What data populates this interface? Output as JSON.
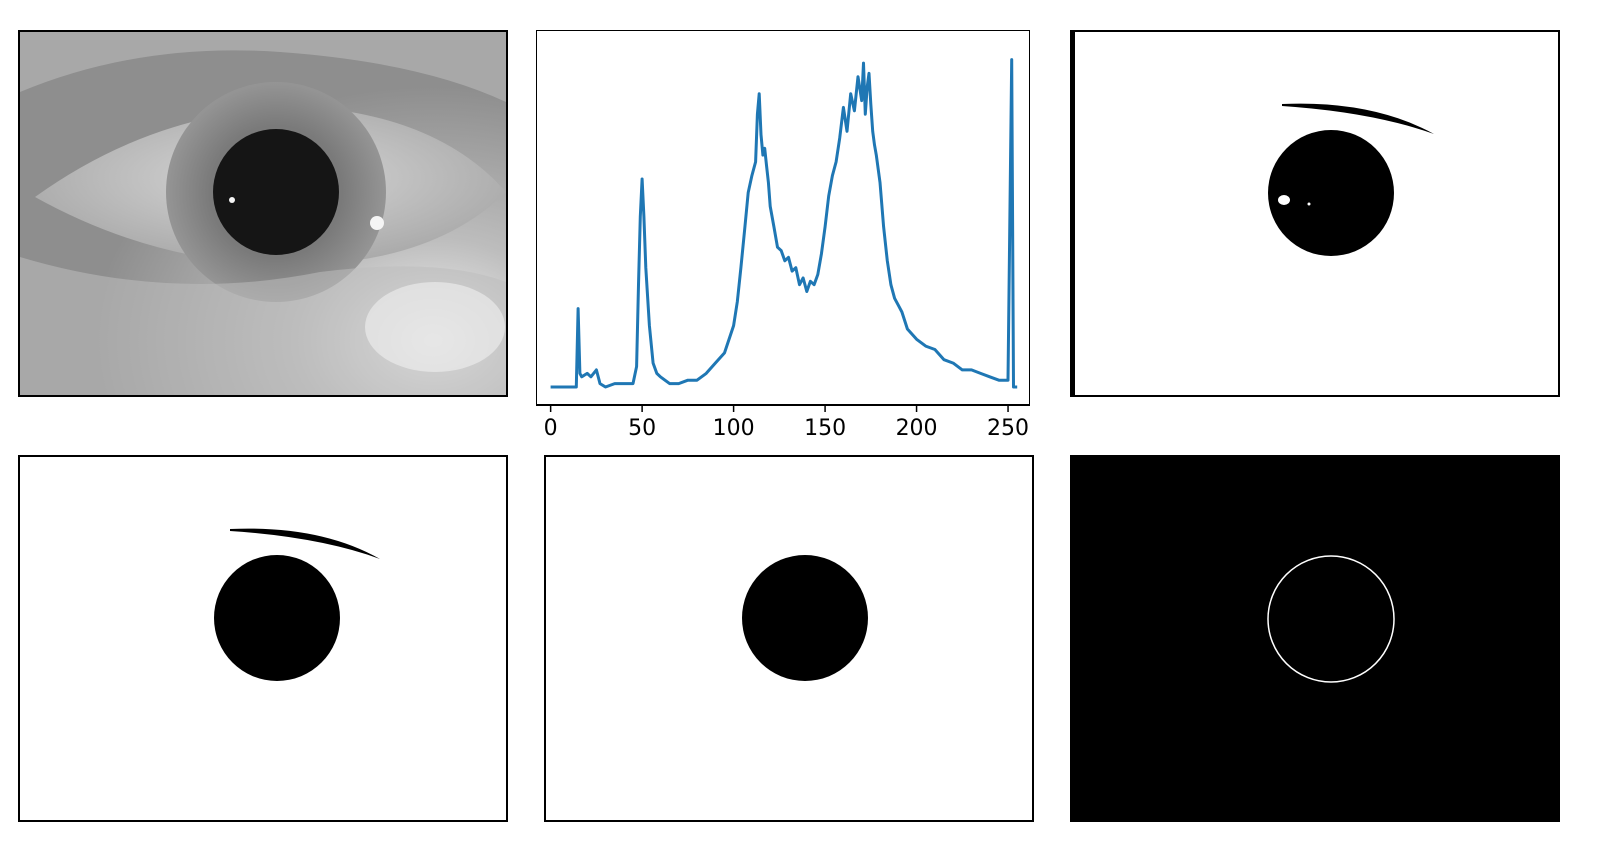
{
  "figure": {
    "panels": [
      {
        "id": "eye",
        "description_name": "original-eye-image"
      },
      {
        "id": "hist",
        "description_name": "intensity-histogram"
      },
      {
        "id": "bin1",
        "description_name": "threshold-binary"
      },
      {
        "id": "bin2",
        "description_name": "cleaned-binary"
      },
      {
        "id": "bin3",
        "description_name": "pupil-mask"
      },
      {
        "id": "edge",
        "description_name": "pupil-edge"
      }
    ]
  },
  "colors": {
    "line": "#1f77b4",
    "black": "#000000",
    "white": "#ffffff"
  },
  "chart_data": {
    "type": "line",
    "title": "",
    "xlabel": "",
    "ylabel": "",
    "xlim": [
      -8,
      262
    ],
    "ylim": [
      0,
      100
    ],
    "xticks": [
      0,
      50,
      100,
      150,
      200,
      250
    ],
    "xtick_labels": [
      "0",
      "50",
      "100",
      "150",
      "200",
      "250"
    ],
    "series": [
      {
        "name": "histogram",
        "x": [
          0,
          10,
          14,
          15,
          16,
          17,
          20,
          22,
          25,
          27,
          30,
          35,
          40,
          45,
          47,
          48,
          49,
          50,
          51,
          52,
          54,
          56,
          58,
          60,
          65,
          70,
          75,
          80,
          85,
          90,
          95,
          100,
          102,
          104,
          106,
          108,
          110,
          112,
          113,
          114,
          115,
          116,
          117,
          118,
          119,
          120,
          122,
          124,
          126,
          128,
          130,
          132,
          134,
          136,
          138,
          140,
          142,
          144,
          146,
          148,
          150,
          152,
          154,
          156,
          158,
          160,
          162,
          164,
          166,
          168,
          170,
          171,
          172,
          173,
          174,
          175,
          176,
          177,
          178,
          180,
          182,
          184,
          186,
          188,
          190,
          192,
          195,
          200,
          205,
          210,
          215,
          220,
          225,
          230,
          235,
          240,
          245,
          250,
          252,
          253,
          254,
          255
        ],
        "y": [
          0,
          0,
          0,
          23,
          4,
          3,
          4,
          3,
          5,
          1,
          0,
          1,
          1,
          1,
          6,
          30,
          50,
          61,
          50,
          35,
          18,
          7,
          4,
          3,
          1,
          1,
          2,
          2,
          4,
          7,
          10,
          18,
          25,
          35,
          46,
          57,
          62,
          66,
          80,
          86,
          74,
          68,
          70,
          65,
          60,
          53,
          47,
          41,
          40,
          37,
          38,
          34,
          35,
          30,
          32,
          28,
          31,
          30,
          33,
          39,
          47,
          56,
          62,
          66,
          73,
          82,
          75,
          86,
          81,
          91,
          84,
          95,
          80,
          88,
          92,
          83,
          75,
          71,
          68,
          60,
          47,
          37,
          30,
          26,
          24,
          22,
          17,
          14,
          12,
          11,
          8,
          7,
          5,
          5,
          4,
          3,
          2,
          2,
          96,
          0,
          0,
          0
        ]
      }
    ]
  }
}
